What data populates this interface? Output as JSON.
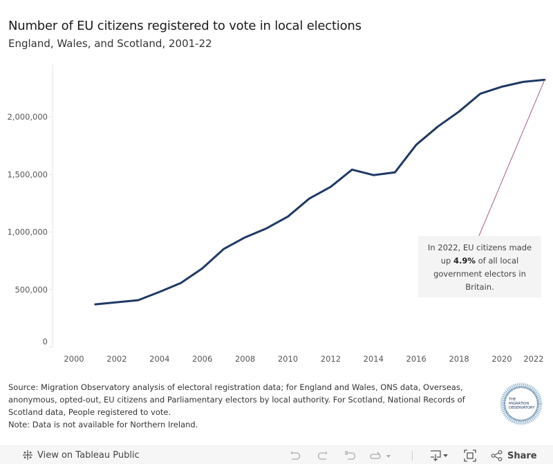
{
  "header": {
    "title": "Number of EU citizens registered to vote in local elections",
    "subtitle": "England, Wales, and Scotland, 2001-22"
  },
  "chart_data": {
    "type": "line",
    "title": "Number of EU citizens registered to vote in local elections",
    "subtitle": "England, Wales, and Scotland, 2001-22",
    "xlabel": "",
    "ylabel": "",
    "x": [
      2001,
      2002,
      2003,
      2004,
      2005,
      2006,
      2007,
      2008,
      2009,
      2010,
      2011,
      2012,
      2013,
      2014,
      2015,
      2016,
      2017,
      2018,
      2019,
      2020,
      2021,
      2022
    ],
    "series": [
      {
        "name": "EU citizens registered to vote",
        "color": "#1f3864",
        "values": [
          372000,
          390000,
          408000,
          480000,
          558000,
          684000,
          852000,
          954000,
          1032000,
          1134000,
          1290000,
          1392000,
          1542000,
          1494000,
          1518000,
          1758000,
          1914000,
          2046000,
          2202000,
          2262000,
          2304000,
          2322000
        ]
      }
    ],
    "xlim": [
      1999,
      2022
    ],
    "ylim": [
      0,
      2400000
    ],
    "x_ticks": [
      "2000",
      "2002",
      "2004",
      "2006",
      "2008",
      "2010",
      "2012",
      "2014",
      "2016",
      "2018",
      "2020",
      "2022"
    ],
    "x_tick_values": [
      2000,
      2002,
      2004,
      2006,
      2008,
      2010,
      2012,
      2014,
      2016,
      2018,
      2020,
      2022
    ],
    "y_ticks": [
      "0",
      "500,000",
      "1,000,000",
      "1,500,000",
      "2,000,000"
    ],
    "y_tick_values": [
      0,
      500000,
      1000000,
      1500000,
      2000000
    ],
    "grid": false,
    "legend": "none",
    "annotation": {
      "target_x": 2022,
      "text_before": "In 2022, EU citizens made up ",
      "highlight": "4.9%",
      "text_after": " of all local government electors in Britain.",
      "line_color": "#a0608a",
      "box_color": "#f4f4f4"
    }
  },
  "footer": {
    "source": "Source: Migration Observatory analysis of electoral registration data; for England and Wales, ONS data, Overseas, anonymous, opted-out, EU citizens and Parliamentary electors by local authority. For Scotland, National Records of Scotland data, People registered to vote.",
    "note": "Note: Data is not available for Northern Ireland.",
    "logo_text": [
      "THE",
      "MIGRATION",
      "OBSERVATORY"
    ]
  },
  "toolbar": {
    "view_label": "View on Tableau Public",
    "share_label": "Share",
    "icons": [
      "tableau-icon",
      "undo-icon",
      "redo-icon",
      "revert-icon",
      "refresh-icon",
      "download-icon",
      "fullscreen-icon",
      "share-icon"
    ]
  }
}
